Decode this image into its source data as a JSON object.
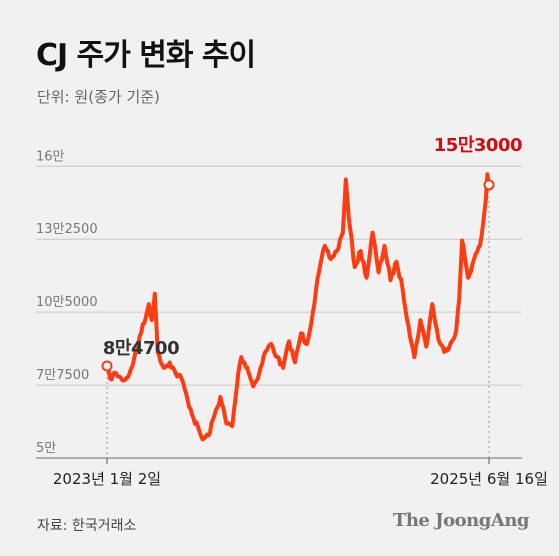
{
  "header": {
    "title": "CJ 주가 변화 추이",
    "subtitle": "단위: 원(종가 기준)"
  },
  "footer": {
    "source": "자료: 한국거래소",
    "logo": "The JoongAng"
  },
  "colors": {
    "line": "#ff3b12",
    "start_marker": "#ff3b12",
    "end_annotation": "#cc0f14",
    "start_annotation": "#333333",
    "grid": "#c8c8c8"
  },
  "chart_data": {
    "type": "line",
    "ylim": [
      50000,
      165000
    ],
    "y_ticks": [
      {
        "value": 50000,
        "label": "5만"
      },
      {
        "value": 77500,
        "label": "7만7500"
      },
      {
        "value": 105000,
        "label": "10만5000"
      },
      {
        "value": 132500,
        "label": "13만2500"
      },
      {
        "value": 160000,
        "label": "16만"
      }
    ],
    "x_ticks": [
      {
        "value": "2023-01-02",
        "label": "2023년 1월 2일"
      },
      {
        "value": "2025-06-16",
        "label": "2025년 6월 16일"
      }
    ],
    "annotations": {
      "start": {
        "date": "2023-01-02",
        "value": 84700,
        "label": "8만4700"
      },
      "end": {
        "date": "2025-06-16",
        "value": 153000,
        "label": "15만3000"
      }
    },
    "series": [
      {
        "points": [
          [
            "2023-01-02",
            84700
          ],
          [
            "2023-01-09",
            80000
          ],
          [
            "2023-01-23",
            82000
          ],
          [
            "2023-02-06",
            79500
          ],
          [
            "2023-02-20",
            80500
          ],
          [
            "2023-03-06",
            87000
          ],
          [
            "2023-03-20",
            96000
          ],
          [
            "2023-04-03",
            103000
          ],
          [
            "2023-04-10",
            108000
          ],
          [
            "2023-04-17",
            102000
          ],
          [
            "2023-04-24",
            112000
          ],
          [
            "2023-05-01",
            90000
          ],
          [
            "2023-05-15",
            84000
          ],
          [
            "2023-05-29",
            86000
          ],
          [
            "2023-06-12",
            82000
          ],
          [
            "2023-06-26",
            80000
          ],
          [
            "2023-07-10",
            72000
          ],
          [
            "2023-07-24",
            65000
          ],
          [
            "2023-08-07",
            60000
          ],
          [
            "2023-08-14",
            57000
          ],
          [
            "2023-08-28",
            58500
          ],
          [
            "2023-09-11",
            66000
          ],
          [
            "2023-09-25",
            73000
          ],
          [
            "2023-10-09",
            63000
          ],
          [
            "2023-10-23",
            62000
          ],
          [
            "2023-11-06",
            82000
          ],
          [
            "2023-11-13",
            88000
          ],
          [
            "2023-11-27",
            84000
          ],
          [
            "2023-12-11",
            77000
          ],
          [
            "2023-12-25",
            82000
          ],
          [
            "2024-01-08",
            90000
          ],
          [
            "2024-01-22",
            93000
          ],
          [
            "2024-02-05",
            88000
          ],
          [
            "2024-02-19",
            84000
          ],
          [
            "2024-03-04",
            94000
          ],
          [
            "2024-03-18",
            86000
          ],
          [
            "2024-04-01",
            97000
          ],
          [
            "2024-04-15",
            93000
          ],
          [
            "2024-04-29",
            105000
          ],
          [
            "2024-05-13",
            120000
          ],
          [
            "2024-05-27",
            130000
          ],
          [
            "2024-06-10",
            125000
          ],
          [
            "2024-06-24",
            128000
          ],
          [
            "2024-07-08",
            135000
          ],
          [
            "2024-07-15",
            155000
          ],
          [
            "2024-07-22",
            141000
          ],
          [
            "2024-08-05",
            122000
          ],
          [
            "2024-08-19",
            128000
          ],
          [
            "2024-09-02",
            118000
          ],
          [
            "2024-09-16",
            135000
          ],
          [
            "2024-09-30",
            120000
          ],
          [
            "2024-10-14",
            130000
          ],
          [
            "2024-10-28",
            117000
          ],
          [
            "2024-11-11",
            124000
          ],
          [
            "2024-11-25",
            114000
          ],
          [
            "2024-12-09",
            100000
          ],
          [
            "2024-12-23",
            88000
          ],
          [
            "2025-01-06",
            102000
          ],
          [
            "2025-01-20",
            92000
          ],
          [
            "2025-02-03",
            108000
          ],
          [
            "2025-02-17",
            95000
          ],
          [
            "2025-03-03",
            90000
          ],
          [
            "2025-03-17",
            93000
          ],
          [
            "2025-03-31",
            98000
          ],
          [
            "2025-04-07",
            110000
          ],
          [
            "2025-04-14",
            132000
          ],
          [
            "2025-04-28",
            118000
          ],
          [
            "2025-05-12",
            125000
          ],
          [
            "2025-05-26",
            130000
          ],
          [
            "2025-06-02",
            138000
          ],
          [
            "2025-06-09",
            148000
          ],
          [
            "2025-06-12",
            157000
          ],
          [
            "2025-06-16",
            153000
          ]
        ]
      }
    ]
  }
}
